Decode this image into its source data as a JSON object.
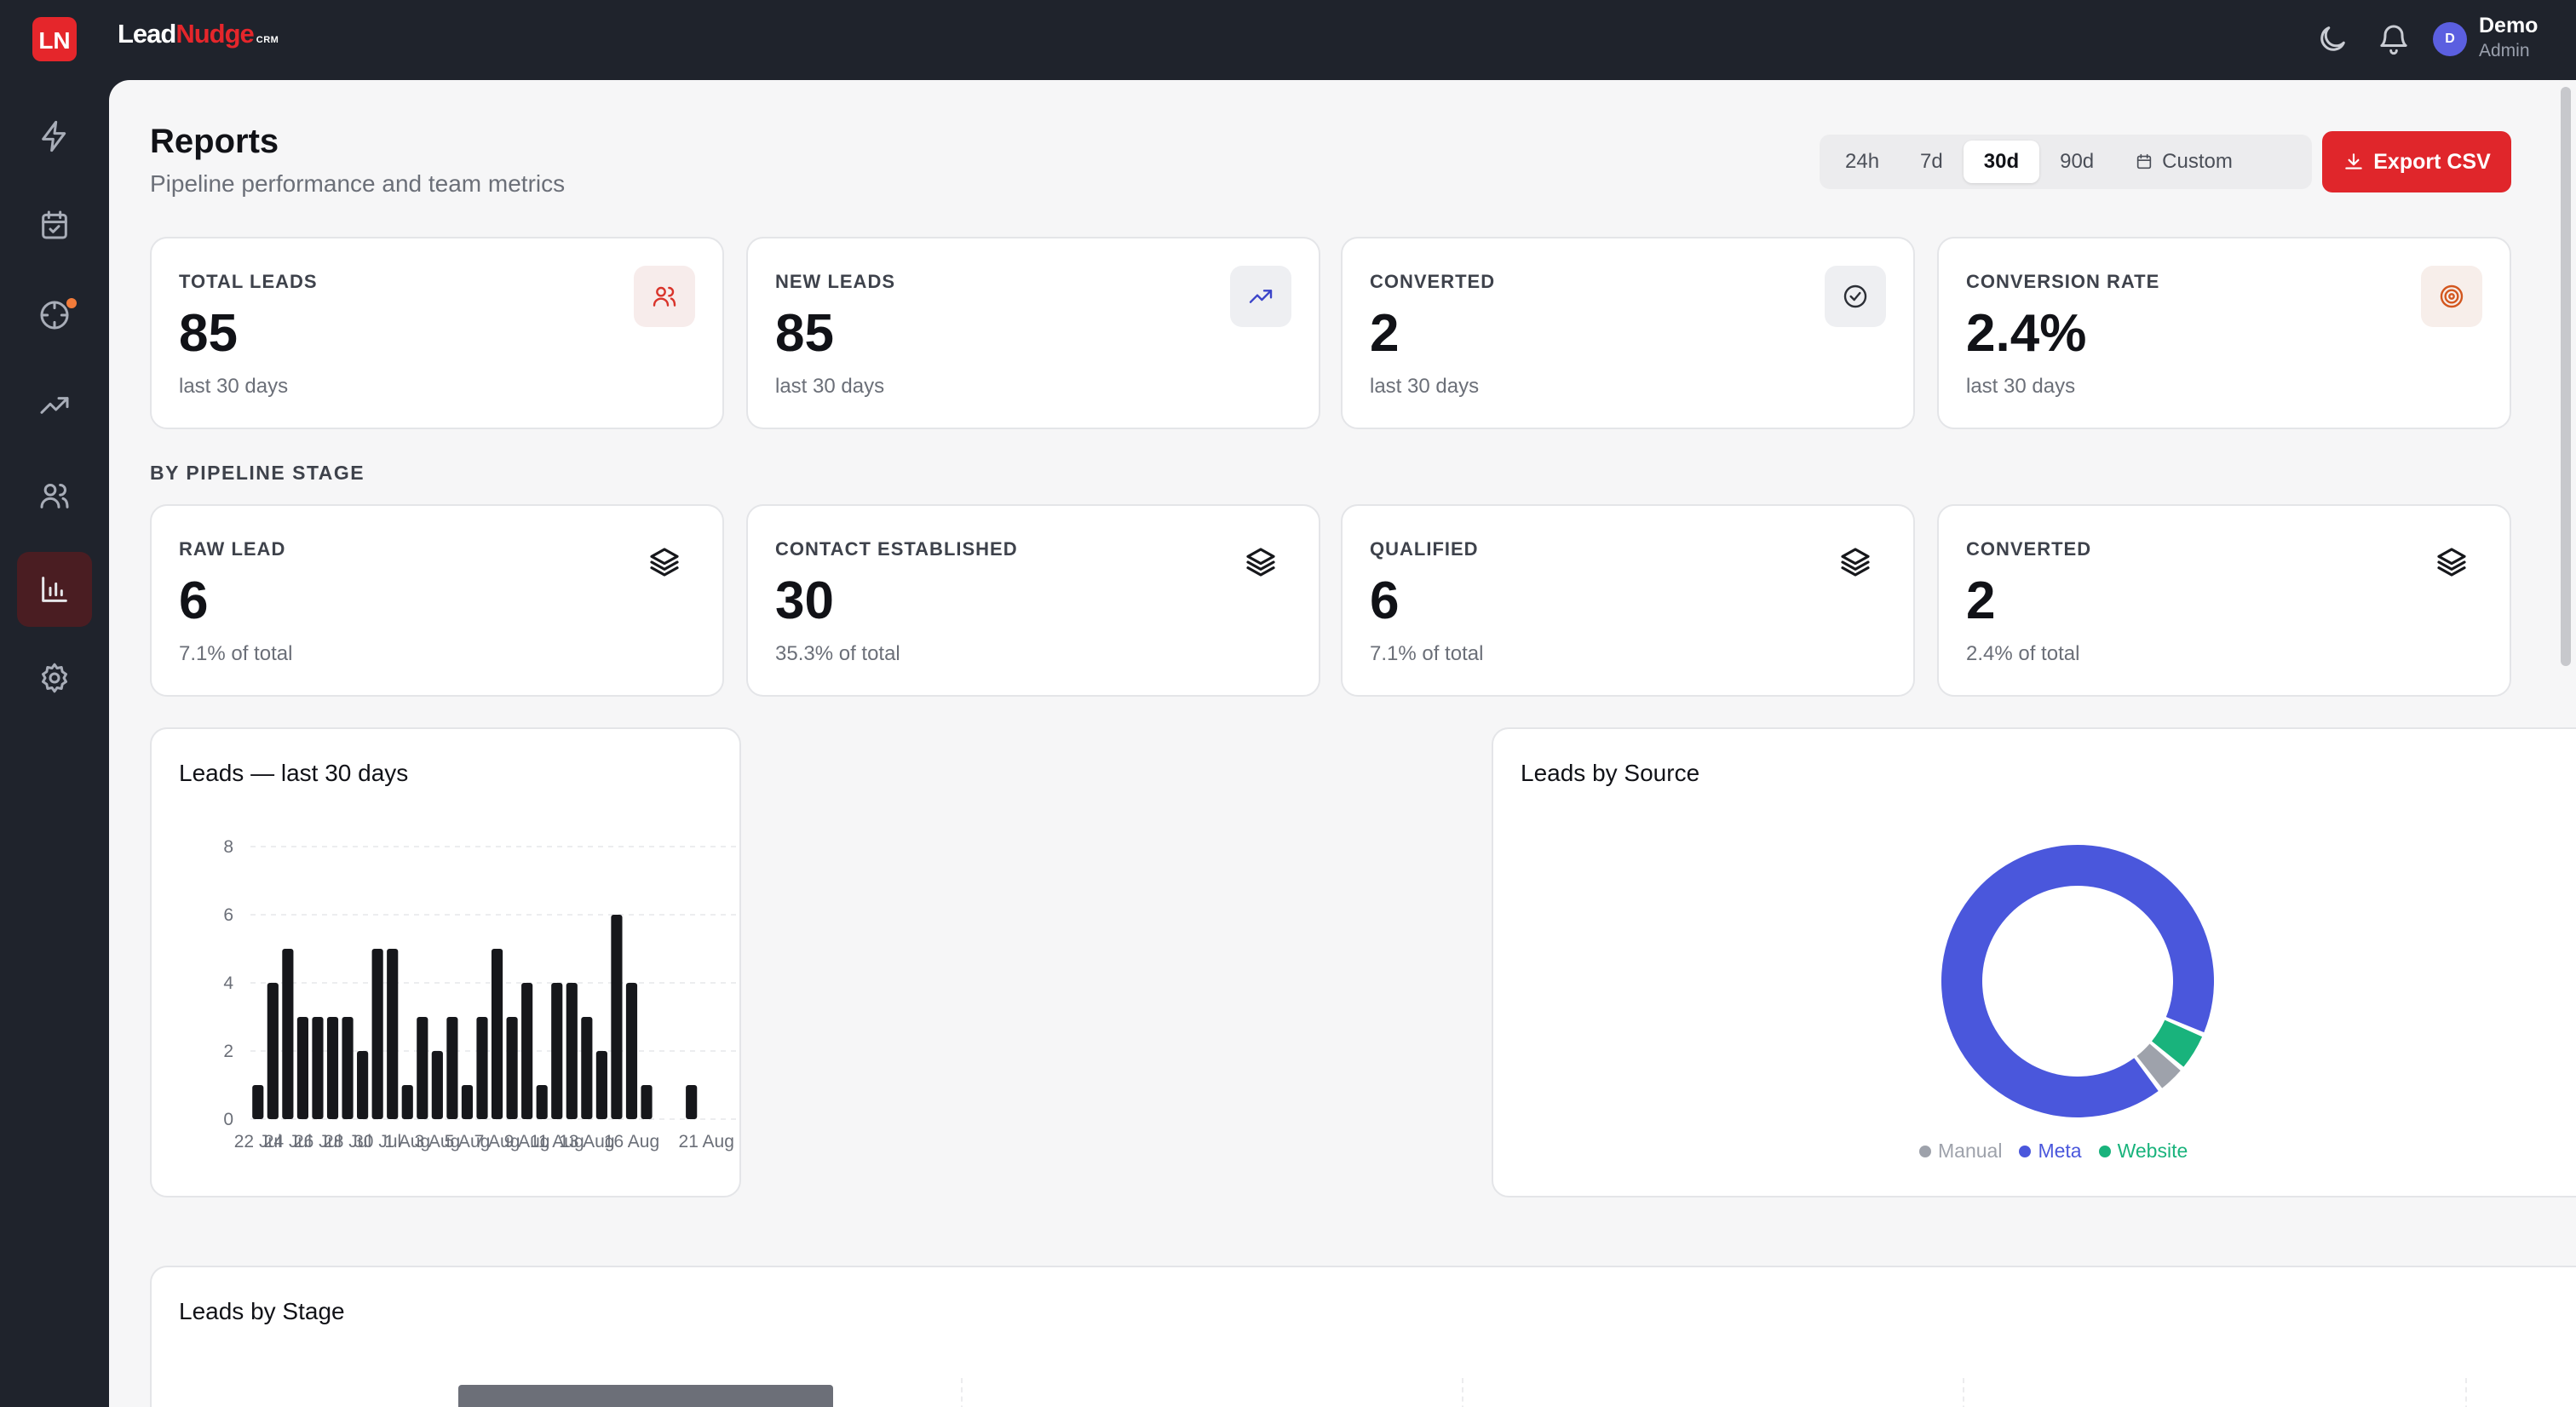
{
  "brand": {
    "logo_text": "LN",
    "name_a": "Lead",
    "name_b": "Nudge",
    "name_suffix": "CRM"
  },
  "user": {
    "initial": "D",
    "name": "Demo",
    "role": "Admin"
  },
  "sidebar": {
    "items": [
      {
        "name": "sidebar-item-activity",
        "icon": "lightning-icon",
        "active": false
      },
      {
        "name": "sidebar-item-tasks",
        "icon": "calendar-check-icon",
        "active": false
      },
      {
        "name": "sidebar-item-targets",
        "icon": "crosshair-icon",
        "active": false,
        "has_dot": true
      },
      {
        "name": "sidebar-item-trends",
        "icon": "trending-up-icon",
        "active": false
      },
      {
        "name": "sidebar-item-contacts",
        "icon": "users-icon",
        "active": false
      },
      {
        "name": "sidebar-item-reports",
        "icon": "bar-chart-icon",
        "active": true
      },
      {
        "name": "sidebar-item-settings",
        "icon": "gear-icon",
        "active": false
      }
    ]
  },
  "page": {
    "title": "Reports",
    "subtitle": "Pipeline performance and team metrics"
  },
  "range": {
    "options": [
      "24h",
      "7d",
      "30d",
      "90d",
      "Custom"
    ],
    "selected": "30d"
  },
  "export_label": "Export CSV",
  "stats": [
    {
      "label": "TOTAL LEADS",
      "value": "85",
      "sub": "last 30 days",
      "icon": "users-icon",
      "icon_color": "#d9342b",
      "icon_bg": "#f7eceb"
    },
    {
      "label": "NEW LEADS",
      "value": "85",
      "sub": "last 30 days",
      "icon": "trending-up-icon",
      "icon_color": "#3b44c9",
      "icon_bg": "#eeeff2"
    },
    {
      "label": "CONVERTED",
      "value": "2",
      "sub": "last 30 days",
      "icon": "check-circle-icon",
      "icon_color": "#2c2f36",
      "icon_bg": "#eeeff2"
    },
    {
      "label": "CONVERSION RATE",
      "value": "2.4%",
      "sub": "last 30 days",
      "icon": "target-icon",
      "icon_color": "#d3571f",
      "icon_bg": "#f7eeea"
    }
  ],
  "stages_label": "BY PIPELINE STAGE",
  "stages": [
    {
      "label": "RAW LEAD",
      "value": "6",
      "sub": "7.1% of total"
    },
    {
      "label": "CONTACT ESTABLISHED",
      "value": "30",
      "sub": "35.3% of total"
    },
    {
      "label": "QUALIFIED",
      "value": "6",
      "sub": "7.1% of total"
    },
    {
      "label": "CONVERTED",
      "value": "2",
      "sub": "2.4% of total"
    }
  ],
  "chart_data": [
    {
      "type": "bar",
      "title": "Leads — last 30 days",
      "categories": [
        "22 Jul",
        "23 Jul",
        "24 Jul",
        "25 Jul",
        "26 Jul",
        "27 Jul",
        "28 Jul",
        "29 Jul",
        "30 Jul",
        "31 Jul",
        "1 Aug",
        "2 Aug",
        "3 Aug",
        "4 Aug",
        "5 Aug",
        "6 Aug",
        "7 Aug",
        "8 Aug",
        "9 Aug",
        "10 Aug",
        "11 Aug",
        "12 Aug",
        "13 Aug",
        "14 Aug",
        "15 Aug",
        "16 Aug",
        "17 Aug",
        "18 Aug",
        "19 Aug",
        "20 Aug",
        "21 Aug"
      ],
      "values": [
        1,
        4,
        5,
        3,
        3,
        3,
        3,
        2,
        5,
        5,
        1,
        3,
        2,
        3,
        1,
        3,
        5,
        3,
        4,
        1,
        4,
        4,
        3,
        2,
        6,
        4,
        1,
        0,
        0,
        1,
        0
      ],
      "tick_labels": [
        "22 Jul",
        "24 Jul",
        "26 Jul",
        "28 Jul",
        "30 Jul",
        "1 Aug",
        "3 Aug",
        "5 Aug",
        "7 Aug",
        "9 Aug",
        "11 Aug",
        "13 Aug",
        "16 Aug",
        "21 Aug"
      ],
      "tick_indices": [
        0,
        2,
        4,
        6,
        8,
        10,
        12,
        14,
        16,
        18,
        20,
        22,
        25,
        30
      ],
      "yticks": [
        "0",
        "2",
        "4",
        "6",
        "8"
      ],
      "ylim": [
        0,
        8
      ],
      "grid": true,
      "bar_color": "#16171b"
    },
    {
      "type": "pie",
      "title": "Leads by Source",
      "labels": [
        "Manual",
        "Meta",
        "Website"
      ],
      "values": [
        3,
        78,
        4
      ],
      "colors": [
        "#9ea2ab",
        "#4a57dc",
        "#19b37c"
      ],
      "legend": "bottom"
    },
    {
      "type": "bar",
      "title": "Leads by Stage"
    }
  ]
}
